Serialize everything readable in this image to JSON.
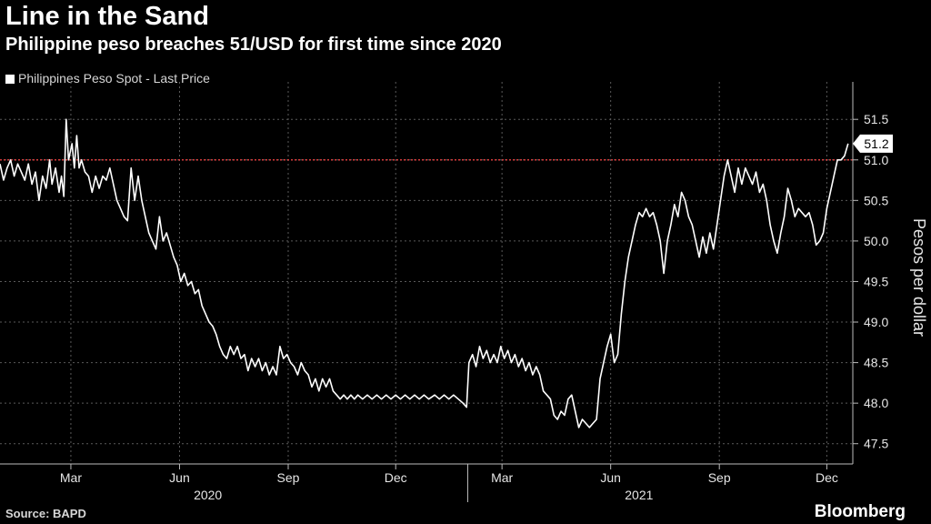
{
  "title": "Line in the Sand",
  "subtitle": "Philippine peso breaches 51/USD for first time since 2020",
  "source": "Source: BAPD",
  "brand": "Bloomberg",
  "colors": {
    "background": "#000000",
    "line": "#ffffff",
    "threshold": "#d63b3b",
    "grid": "#5a5a5a"
  },
  "chart_data": {
    "type": "line",
    "title": "Line in the Sand",
    "subtitle": "Philippine peso breaches 51/USD for first time since 2020",
    "ylabel": "Pesos per dollar",
    "ylim": [
      47.25,
      51.85
    ],
    "y_ticks": [
      47.5,
      48.0,
      48.5,
      49.0,
      49.5,
      50.0,
      50.5,
      51.0,
      51.5
    ],
    "y_tick_labels": [
      "47.5",
      "48.0",
      "48.5",
      "49.0",
      "49.5",
      "50.0",
      "50.5",
      "51.0",
      "51.5"
    ],
    "x_range": [
      "2020-01-01",
      "2021-12-23"
    ],
    "x_ticks": [
      {
        "date": "2020-03-01",
        "label": "Mar"
      },
      {
        "date": "2020-06-01",
        "label": "Jun"
      },
      {
        "date": "2020-09-01",
        "label": "Sep"
      },
      {
        "date": "2020-12-01",
        "label": "Dec"
      },
      {
        "date": "2021-03-01",
        "label": "Mar"
      },
      {
        "date": "2021-06-01",
        "label": "Jun"
      },
      {
        "date": "2021-09-01",
        "label": "Sep"
      },
      {
        "date": "2021-12-01",
        "label": "Dec"
      }
    ],
    "year_labels": [
      {
        "label": "2020",
        "center": "2020-06-25"
      },
      {
        "label": "2021",
        "center": "2021-06-25"
      }
    ],
    "year_divider": "2021-01-31",
    "grid": true,
    "legend": {
      "position": "top-left",
      "entries": [
        "Philippines Peso Spot - Last Price"
      ]
    },
    "threshold": {
      "value": 51.0,
      "style": "dotted"
    },
    "last_value_label": "51.2",
    "series": [
      {
        "name": "Philippines Peso Spot - Last Price",
        "points": [
          [
            "2020-01-01",
            50.95
          ],
          [
            "2020-01-04",
            50.75
          ],
          [
            "2020-01-07",
            50.9
          ],
          [
            "2020-01-10",
            51.0
          ],
          [
            "2020-01-13",
            50.8
          ],
          [
            "2020-01-16",
            50.95
          ],
          [
            "2020-01-19",
            50.85
          ],
          [
            "2020-01-22",
            50.75
          ],
          [
            "2020-01-25",
            50.95
          ],
          [
            "2020-01-28",
            50.7
          ],
          [
            "2020-01-31",
            50.85
          ],
          [
            "2020-02-03",
            50.5
          ],
          [
            "2020-02-06",
            50.8
          ],
          [
            "2020-02-09",
            50.65
          ],
          [
            "2020-02-12",
            51.0
          ],
          [
            "2020-02-14",
            50.7
          ],
          [
            "2020-02-17",
            50.9
          ],
          [
            "2020-02-20",
            50.6
          ],
          [
            "2020-02-22",
            50.8
          ],
          [
            "2020-02-24",
            50.55
          ],
          [
            "2020-02-26",
            51.5
          ],
          [
            "2020-02-28",
            51.0
          ],
          [
            "2020-03-02",
            51.2
          ],
          [
            "2020-03-04",
            50.9
          ],
          [
            "2020-03-06",
            51.3
          ],
          [
            "2020-03-08",
            50.9
          ],
          [
            "2020-03-10",
            51.0
          ],
          [
            "2020-03-13",
            50.85
          ],
          [
            "2020-03-16",
            50.8
          ],
          [
            "2020-03-19",
            50.6
          ],
          [
            "2020-03-22",
            50.8
          ],
          [
            "2020-03-25",
            50.65
          ],
          [
            "2020-03-28",
            50.8
          ],
          [
            "2020-03-31",
            50.75
          ],
          [
            "2020-04-03",
            50.9
          ],
          [
            "2020-04-06",
            50.7
          ],
          [
            "2020-04-09",
            50.5
          ],
          [
            "2020-04-12",
            50.4
          ],
          [
            "2020-04-15",
            50.3
          ],
          [
            "2020-04-18",
            50.25
          ],
          [
            "2020-04-21",
            50.9
          ],
          [
            "2020-04-24",
            50.5
          ],
          [
            "2020-04-27",
            50.8
          ],
          [
            "2020-04-30",
            50.5
          ],
          [
            "2020-05-03",
            50.3
          ],
          [
            "2020-05-06",
            50.1
          ],
          [
            "2020-05-09",
            50.0
          ],
          [
            "2020-05-12",
            49.9
          ],
          [
            "2020-05-15",
            50.3
          ],
          [
            "2020-05-18",
            50.0
          ],
          [
            "2020-05-21",
            50.1
          ],
          [
            "2020-05-24",
            49.95
          ],
          [
            "2020-05-27",
            49.8
          ],
          [
            "2020-05-30",
            49.7
          ],
          [
            "2020-06-02",
            49.5
          ],
          [
            "2020-06-05",
            49.6
          ],
          [
            "2020-06-08",
            49.45
          ],
          [
            "2020-06-11",
            49.5
          ],
          [
            "2020-06-14",
            49.35
          ],
          [
            "2020-06-17",
            49.4
          ],
          [
            "2020-06-20",
            49.2
          ],
          [
            "2020-06-23",
            49.1
          ],
          [
            "2020-06-26",
            49.0
          ],
          [
            "2020-06-29",
            48.95
          ],
          [
            "2020-07-02",
            48.85
          ],
          [
            "2020-07-05",
            48.7
          ],
          [
            "2020-07-08",
            48.6
          ],
          [
            "2020-07-11",
            48.55
          ],
          [
            "2020-07-14",
            48.7
          ],
          [
            "2020-07-17",
            48.6
          ],
          [
            "2020-07-20",
            48.7
          ],
          [
            "2020-07-23",
            48.55
          ],
          [
            "2020-07-26",
            48.6
          ],
          [
            "2020-07-29",
            48.4
          ],
          [
            "2020-08-01",
            48.55
          ],
          [
            "2020-08-04",
            48.45
          ],
          [
            "2020-08-07",
            48.55
          ],
          [
            "2020-08-10",
            48.4
          ],
          [
            "2020-08-13",
            48.5
          ],
          [
            "2020-08-16",
            48.35
          ],
          [
            "2020-08-19",
            48.45
          ],
          [
            "2020-08-22",
            48.35
          ],
          [
            "2020-08-25",
            48.7
          ],
          [
            "2020-08-28",
            48.55
          ],
          [
            "2020-08-31",
            48.6
          ],
          [
            "2020-09-03",
            48.5
          ],
          [
            "2020-09-06",
            48.45
          ],
          [
            "2020-09-09",
            48.35
          ],
          [
            "2020-09-12",
            48.5
          ],
          [
            "2020-09-15",
            48.4
          ],
          [
            "2020-09-18",
            48.35
          ],
          [
            "2020-09-21",
            48.2
          ],
          [
            "2020-09-24",
            48.3
          ],
          [
            "2020-09-27",
            48.15
          ],
          [
            "2020-09-30",
            48.3
          ],
          [
            "2020-10-03",
            48.2
          ],
          [
            "2020-10-06",
            48.3
          ],
          [
            "2020-10-09",
            48.15
          ],
          [
            "2020-10-12",
            48.1
          ],
          [
            "2020-10-15",
            48.05
          ],
          [
            "2020-10-18",
            48.1
          ],
          [
            "2020-10-21",
            48.05
          ],
          [
            "2020-10-24",
            48.1
          ],
          [
            "2020-10-27",
            48.05
          ],
          [
            "2020-10-30",
            48.1
          ],
          [
            "2020-11-03",
            48.05
          ],
          [
            "2020-11-07",
            48.1
          ],
          [
            "2020-11-11",
            48.05
          ],
          [
            "2020-11-15",
            48.1
          ],
          [
            "2020-11-19",
            48.05
          ],
          [
            "2020-11-23",
            48.1
          ],
          [
            "2020-11-27",
            48.05
          ],
          [
            "2020-12-01",
            48.1
          ],
          [
            "2020-12-05",
            48.05
          ],
          [
            "2020-12-09",
            48.1
          ],
          [
            "2020-12-13",
            48.05
          ],
          [
            "2020-12-17",
            48.1
          ],
          [
            "2020-12-21",
            48.05
          ],
          [
            "2020-12-25",
            48.1
          ],
          [
            "2020-12-29",
            48.05
          ],
          [
            "2021-01-03",
            48.1
          ],
          [
            "2021-01-07",
            48.05
          ],
          [
            "2021-01-11",
            48.1
          ],
          [
            "2021-01-15",
            48.05
          ],
          [
            "2021-01-19",
            48.1
          ],
          [
            "2021-01-23",
            48.05
          ],
          [
            "2021-01-27",
            48.0
          ],
          [
            "2021-01-30",
            47.95
          ],
          [
            "2021-02-01",
            48.5
          ],
          [
            "2021-02-04",
            48.6
          ],
          [
            "2021-02-07",
            48.45
          ],
          [
            "2021-02-10",
            48.7
          ],
          [
            "2021-02-13",
            48.55
          ],
          [
            "2021-02-16",
            48.65
          ],
          [
            "2021-02-19",
            48.5
          ],
          [
            "2021-02-22",
            48.6
          ],
          [
            "2021-02-25",
            48.5
          ],
          [
            "2021-02-28",
            48.7
          ],
          [
            "2021-03-03",
            48.55
          ],
          [
            "2021-03-06",
            48.65
          ],
          [
            "2021-03-09",
            48.5
          ],
          [
            "2021-03-12",
            48.6
          ],
          [
            "2021-03-15",
            48.45
          ],
          [
            "2021-03-18",
            48.55
          ],
          [
            "2021-03-21",
            48.4
          ],
          [
            "2021-03-24",
            48.5
          ],
          [
            "2021-03-27",
            48.35
          ],
          [
            "2021-03-30",
            48.45
          ],
          [
            "2021-04-02",
            48.35
          ],
          [
            "2021-04-05",
            48.15
          ],
          [
            "2021-04-08",
            48.1
          ],
          [
            "2021-04-11",
            48.05
          ],
          [
            "2021-04-14",
            47.85
          ],
          [
            "2021-04-17",
            47.8
          ],
          [
            "2021-04-20",
            47.9
          ],
          [
            "2021-04-23",
            47.85
          ],
          [
            "2021-04-26",
            48.05
          ],
          [
            "2021-04-29",
            48.1
          ],
          [
            "2021-05-02",
            47.9
          ],
          [
            "2021-05-05",
            47.7
          ],
          [
            "2021-05-08",
            47.8
          ],
          [
            "2021-05-11",
            47.75
          ],
          [
            "2021-05-14",
            47.7
          ],
          [
            "2021-05-17",
            47.75
          ],
          [
            "2021-05-20",
            47.8
          ],
          [
            "2021-05-23",
            48.3
          ],
          [
            "2021-05-26",
            48.5
          ],
          [
            "2021-05-29",
            48.7
          ],
          [
            "2021-06-01",
            48.85
          ],
          [
            "2021-06-04",
            48.5
          ],
          [
            "2021-06-07",
            48.6
          ],
          [
            "2021-06-10",
            49.1
          ],
          [
            "2021-06-13",
            49.5
          ],
          [
            "2021-06-16",
            49.8
          ],
          [
            "2021-06-19",
            50.0
          ],
          [
            "2021-06-22",
            50.2
          ],
          [
            "2021-06-25",
            50.35
          ],
          [
            "2021-06-28",
            50.3
          ],
          [
            "2021-07-01",
            50.4
          ],
          [
            "2021-07-04",
            50.3
          ],
          [
            "2021-07-07",
            50.35
          ],
          [
            "2021-07-10",
            50.2
          ],
          [
            "2021-07-13",
            50.0
          ],
          [
            "2021-07-16",
            49.6
          ],
          [
            "2021-07-19",
            50.0
          ],
          [
            "2021-07-22",
            50.2
          ],
          [
            "2021-07-25",
            50.45
          ],
          [
            "2021-07-28",
            50.3
          ],
          [
            "2021-07-31",
            50.6
          ],
          [
            "2021-08-03",
            50.5
          ],
          [
            "2021-08-06",
            50.3
          ],
          [
            "2021-08-09",
            50.2
          ],
          [
            "2021-08-12",
            50.0
          ],
          [
            "2021-08-15",
            49.8
          ],
          [
            "2021-08-18",
            50.05
          ],
          [
            "2021-08-21",
            49.85
          ],
          [
            "2021-08-24",
            50.1
          ],
          [
            "2021-08-27",
            49.9
          ],
          [
            "2021-08-30",
            50.2
          ],
          [
            "2021-09-02",
            50.5
          ],
          [
            "2021-09-05",
            50.8
          ],
          [
            "2021-09-08",
            51.0
          ],
          [
            "2021-09-11",
            50.8
          ],
          [
            "2021-09-14",
            50.6
          ],
          [
            "2021-09-17",
            50.9
          ],
          [
            "2021-09-20",
            50.7
          ],
          [
            "2021-09-23",
            50.9
          ],
          [
            "2021-09-26",
            50.8
          ],
          [
            "2021-09-29",
            50.7
          ],
          [
            "2021-10-02",
            50.85
          ],
          [
            "2021-10-05",
            50.6
          ],
          [
            "2021-10-08",
            50.7
          ],
          [
            "2021-10-11",
            50.5
          ],
          [
            "2021-10-14",
            50.2
          ],
          [
            "2021-10-17",
            50.0
          ],
          [
            "2021-10-20",
            49.85
          ],
          [
            "2021-10-23",
            50.1
          ],
          [
            "2021-10-26",
            50.3
          ],
          [
            "2021-10-29",
            50.65
          ],
          [
            "2021-11-01",
            50.5
          ],
          [
            "2021-11-04",
            50.3
          ],
          [
            "2021-11-07",
            50.4
          ],
          [
            "2021-11-10",
            50.35
          ],
          [
            "2021-11-13",
            50.3
          ],
          [
            "2021-11-16",
            50.35
          ],
          [
            "2021-11-19",
            50.2
          ],
          [
            "2021-11-22",
            49.95
          ],
          [
            "2021-11-25",
            50.0
          ],
          [
            "2021-11-28",
            50.1
          ],
          [
            "2021-12-01",
            50.4
          ],
          [
            "2021-12-04",
            50.6
          ],
          [
            "2021-12-07",
            50.8
          ],
          [
            "2021-12-10",
            51.0
          ],
          [
            "2021-12-13",
            51.0
          ],
          [
            "2021-12-16",
            51.05
          ],
          [
            "2021-12-19",
            51.2
          ]
        ]
      }
    ]
  }
}
